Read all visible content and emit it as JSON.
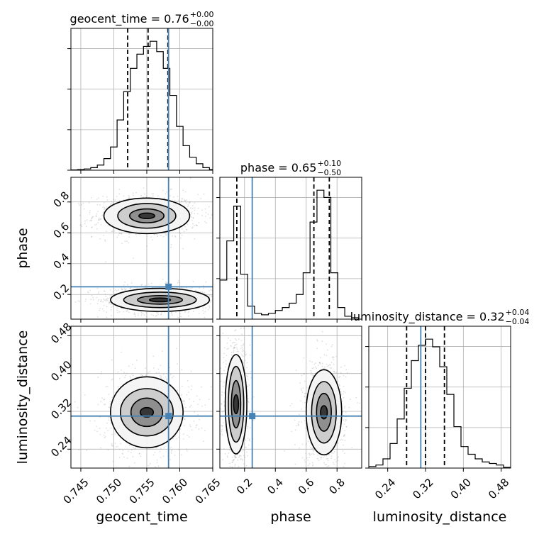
{
  "chart_data": {
    "type": "corner",
    "parameters": [
      "geocent_time",
      "phase",
      "luminosity_distance"
    ],
    "axis_ranges": {
      "geocent_time": [
        0.7435,
        0.765
      ],
      "phase": [
        0.04,
        0.96
      ],
      "luminosity_distance": [
        0.2,
        0.5
      ]
    },
    "ticks": {
      "geocent_time": {
        "values": [
          0.745,
          0.75,
          0.755,
          0.76,
          0.765
        ],
        "labels": [
          "0.745",
          "0.750",
          "0.755",
          "0.760",
          "0.765"
        ]
      },
      "phase": {
        "values": [
          0.2,
          0.4,
          0.6,
          0.8
        ],
        "labels": [
          "0.2",
          "0.4",
          "0.6",
          "0.8"
        ]
      },
      "luminosity_distance": {
        "values": [
          0.24,
          0.32,
          0.4,
          0.48
        ],
        "labels": [
          "0.24",
          "0.32",
          "0.40",
          "0.48"
        ]
      }
    },
    "truths": {
      "geocent_time": 0.7583,
      "phase": 0.25,
      "luminosity_distance": 0.31
    },
    "titles": [
      {
        "param": "geocent_time",
        "label": "geocent_time",
        "median": "0.76",
        "plus": "+0.00",
        "minus": "−0.00"
      },
      {
        "param": "phase",
        "label": "phase",
        "median": "0.65",
        "plus": "+0.10",
        "minus": "−0.50"
      },
      {
        "param": "luminosity_distance",
        "label": "luminosity_distance",
        "median": "0.32",
        "plus": "+0.04",
        "minus": "−0.04"
      }
    ],
    "marginals": [
      {
        "param": "geocent_time",
        "quantiles": [
          0.7521,
          0.7552,
          0.7582
        ],
        "bin_edges": [
          0.7435,
          0.7445,
          0.7455,
          0.7465,
          0.7475,
          0.7485,
          0.7495,
          0.7505,
          0.7515,
          0.7525,
          0.7535,
          0.7545,
          0.7555,
          0.7565,
          0.7575,
          0.7585,
          0.7595,
          0.7605,
          0.7615,
          0.7625,
          0.7635,
          0.7645,
          0.765
        ],
        "counts": [
          0.2,
          0.5,
          1,
          2,
          4,
          9,
          18,
          39,
          61,
          79,
          90,
          96,
          100,
          92,
          79,
          58,
          34,
          19,
          10,
          5,
          2,
          0.5
        ]
      },
      {
        "param": "phase",
        "quantiles": [
          0.15,
          0.65,
          0.75
        ],
        "bin_edges": [
          0.04,
          0.085,
          0.13,
          0.175,
          0.22,
          0.265,
          0.31,
          0.355,
          0.4,
          0.445,
          0.49,
          0.535,
          0.58,
          0.625,
          0.67,
          0.715,
          0.76,
          0.805,
          0.85,
          0.895,
          0.94
        ],
        "counts": [
          27,
          54,
          78,
          31,
          9,
          4,
          3,
          4,
          6,
          8,
          11,
          17,
          32,
          67,
          89,
          84,
          32,
          8,
          2,
          1
        ]
      },
      {
        "param": "luminosity_distance",
        "quantiles": [
          0.28,
          0.32,
          0.36
        ],
        "bin_edges": [
          0.2,
          0.215,
          0.23,
          0.245,
          0.26,
          0.275,
          0.29,
          0.305,
          0.32,
          0.335,
          0.35,
          0.365,
          0.38,
          0.395,
          0.41,
          0.425,
          0.44,
          0.455,
          0.47,
          0.485,
          0.5
        ],
        "counts": [
          1,
          2,
          6,
          16,
          32,
          52,
          70,
          80,
          84,
          79,
          66,
          48,
          27,
          14,
          9,
          6,
          4,
          3,
          2,
          0.5
        ]
      }
    ],
    "joint": [
      {
        "x": "geocent_time",
        "y": "phase",
        "modes": [
          {
            "cx": 0.755,
            "cy": 0.71,
            "rx": [
              0.0012,
              0.0026,
              0.0044,
              0.0065
            ],
            "ry": [
              0.018,
              0.045,
              0.08,
              0.115
            ]
          },
          {
            "cx": 0.757,
            "cy": 0.165,
            "rx": [
              0.0016,
              0.0034,
              0.0055,
              0.0075
            ],
            "ry": [
              0.012,
              0.028,
              0.05,
              0.075
            ]
          }
        ]
      },
      {
        "x": "geocent_time",
        "y": "luminosity_distance",
        "modes": [
          {
            "cx": 0.755,
            "cy": 0.318,
            "rx": [
              0.001,
              0.0024,
              0.004,
              0.0055
            ],
            "ry": [
              0.01,
              0.03,
              0.05,
              0.075
            ]
          }
        ]
      },
      {
        "x": "phase",
        "y": "luminosity_distance",
        "modes": [
          {
            "cx": 0.145,
            "cy": 0.335,
            "rx": [
              0.016,
              0.03,
              0.05,
              0.07
            ],
            "ry": [
              0.02,
              0.05,
              0.08,
              0.105
            ]
          },
          {
            "cx": 0.715,
            "cy": 0.318,
            "rx": [
              0.022,
              0.048,
              0.08,
              0.115
            ],
            "ry": [
              0.014,
              0.04,
              0.065,
              0.09
            ]
          }
        ]
      }
    ]
  }
}
